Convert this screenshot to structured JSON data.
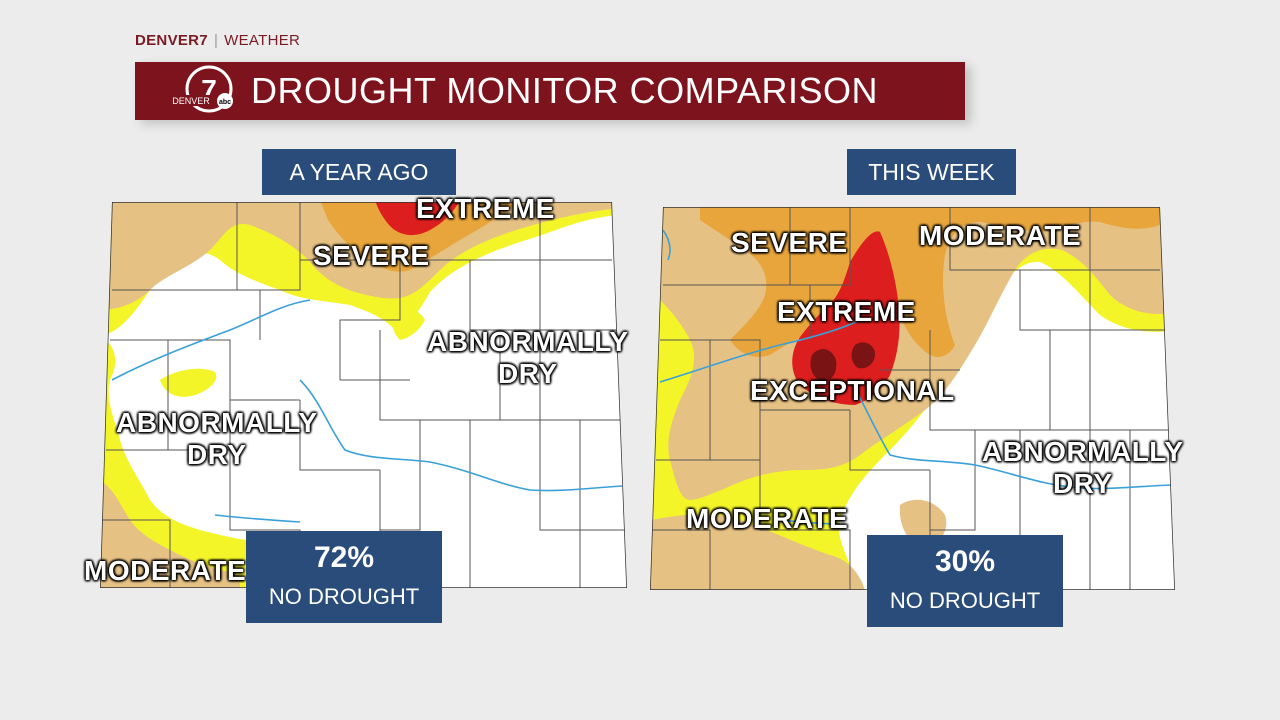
{
  "brand": {
    "station": "DENVER7",
    "section": "WEATHER"
  },
  "title": "DROUGHT MONITOR COMPARISON",
  "logo": {
    "number": "7",
    "word": "DENVER",
    "network": "abc"
  },
  "panels": [
    {
      "tag": "A YEAR AGO",
      "stat_value": "72%",
      "stat_label": "NO DROUGHT",
      "labels": {
        "extreme": "EXTREME",
        "severe": "SEVERE",
        "abnormally_dry_east_1": "ABNORMALLY",
        "abnormally_dry_east_2": "DRY",
        "abnormally_dry_west_1": "ABNORMALLY",
        "abnormally_dry_west_2": "DRY",
        "moderate": "MODERATE"
      }
    },
    {
      "tag": "THIS WEEK",
      "stat_value": "30%",
      "stat_label": "NO DROUGHT",
      "labels": {
        "severe": "SEVERE",
        "moderate_ne": "MODERATE",
        "extreme": "EXTREME",
        "exceptional": "EXCEPTIONAL",
        "abnormally_dry_1": "ABNORMALLY",
        "abnormally_dry_2": "DRY",
        "moderate_sw": "MODERATE"
      }
    }
  ],
  "colors": {
    "none": "#ffffff",
    "abnormally_dry": "#f3f529",
    "moderate": "#e6c184",
    "severe": "#e8a53c",
    "extreme": "#dc1e1e",
    "exceptional": "#7a1414",
    "river": "#3aa0d8",
    "county_line": "#555555",
    "brand": "#7d141d",
    "tag": "#2a4c7a"
  }
}
